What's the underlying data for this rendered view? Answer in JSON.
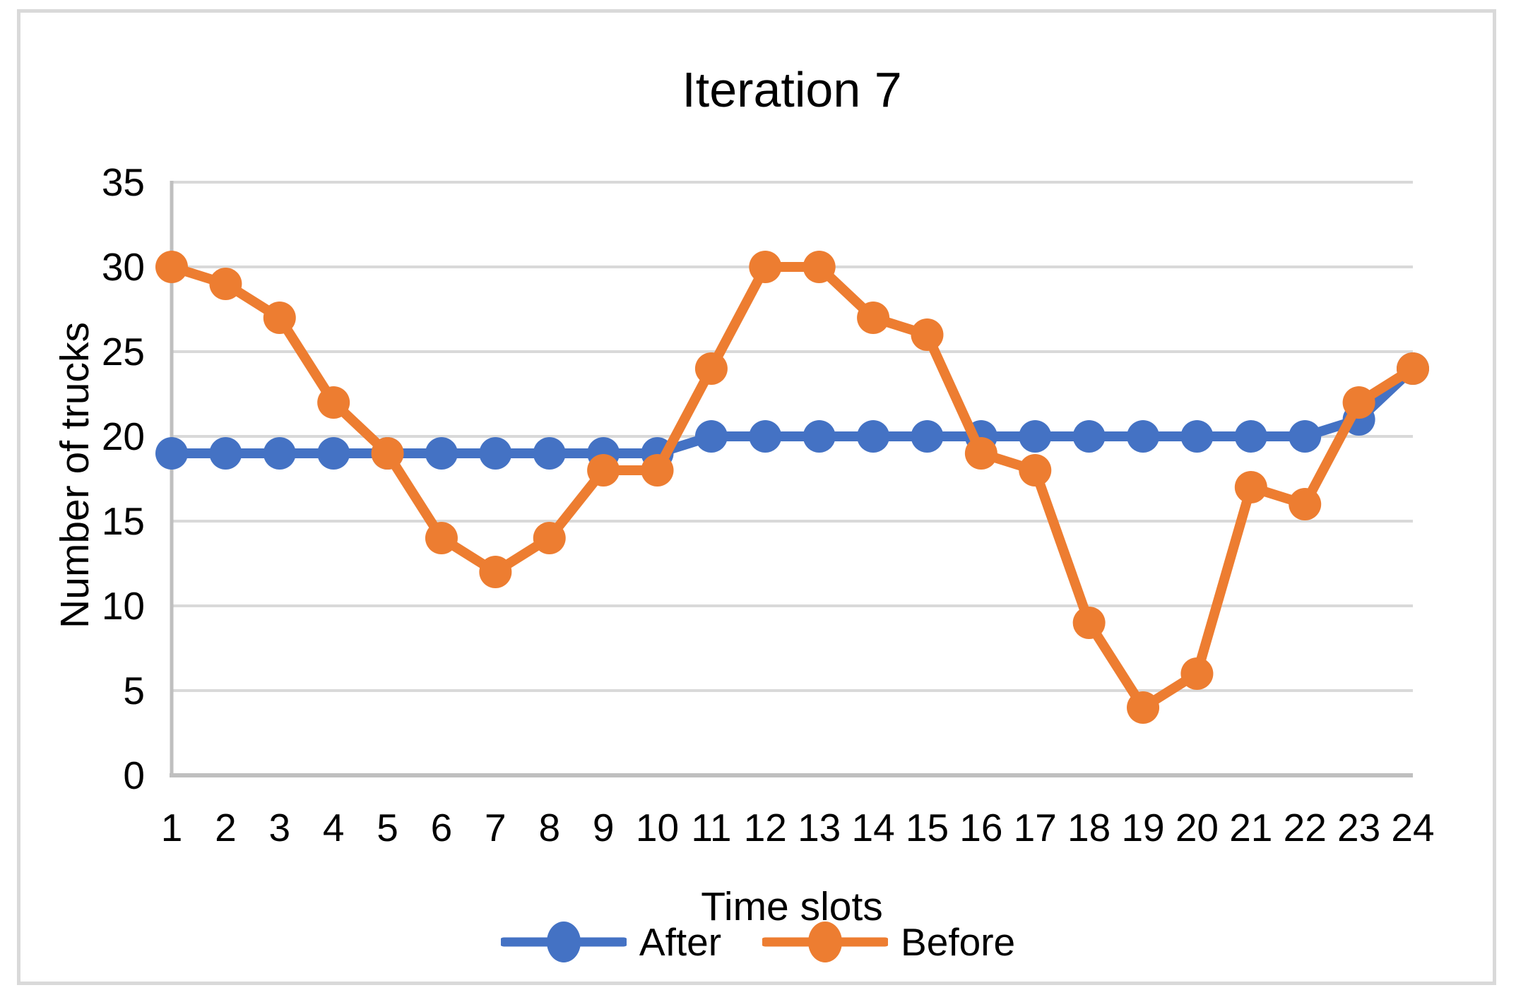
{
  "title": "Iteration 7",
  "colors": {
    "after_series": "#4472C4",
    "before_series": "#ED7D31",
    "gridline": "#D9D9D9",
    "axis_line": "#BFBFBF",
    "chart_border": "#D9D9D9",
    "text": "#000000",
    "background": "#FFFFFF"
  },
  "chart_data": {
    "type": "line",
    "title": "Iteration 7",
    "xlabel": "Time slots",
    "ylabel": "Number of trucks",
    "categories": [
      1,
      2,
      3,
      4,
      5,
      6,
      7,
      8,
      9,
      10,
      11,
      12,
      13,
      14,
      15,
      16,
      17,
      18,
      19,
      20,
      21,
      22,
      23,
      24
    ],
    "yticks": [
      0,
      5,
      10,
      15,
      20,
      25,
      30,
      35
    ],
    "ylim": [
      0,
      35
    ],
    "grid": true,
    "legend_position": "bottom",
    "marker": "circle",
    "series": [
      {
        "name": "After",
        "color": "#4472C4",
        "values": [
          19,
          19,
          19,
          19,
          19,
          19,
          19,
          19,
          19,
          19,
          20,
          20,
          20,
          20,
          20,
          20,
          20,
          20,
          20,
          20,
          20,
          20,
          21,
          24
        ]
      },
      {
        "name": "Before",
        "color": "#ED7D31",
        "values": [
          30,
          29,
          27,
          22,
          19,
          14,
          12,
          14,
          18,
          18,
          24,
          30,
          30,
          27,
          26,
          19,
          18,
          9,
          4,
          6,
          17,
          16,
          22,
          24
        ]
      }
    ]
  }
}
